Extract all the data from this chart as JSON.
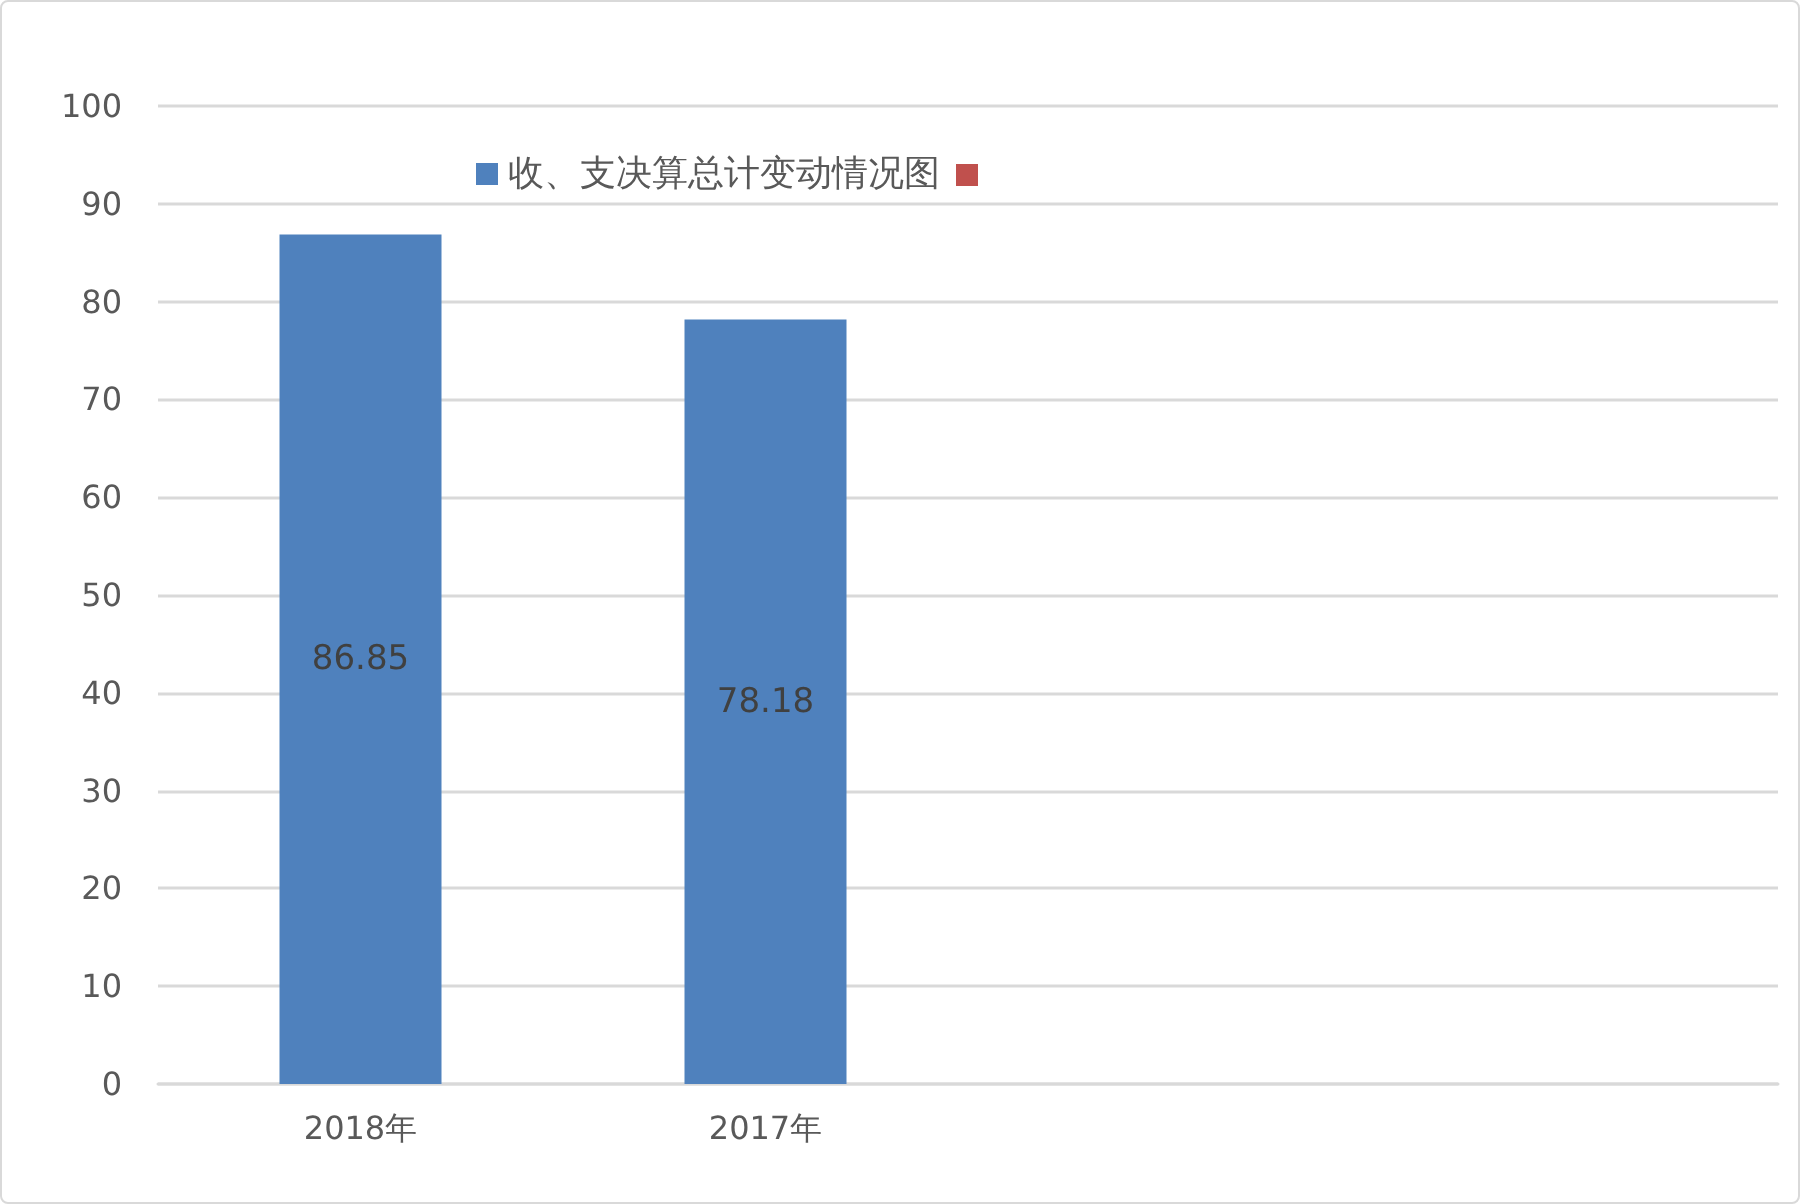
{
  "chart_data": {
    "type": "bar",
    "categories": [
      "2018年",
      "2017年",
      null,
      null
    ],
    "series": [
      {
        "name": "收、支决算总计变动情况图",
        "color": "#4f81bd",
        "values": [
          86.85,
          78.18,
          null,
          null
        ]
      },
      {
        "color": "#c0504d",
        "values": [
          null,
          null,
          null,
          null
        ]
      }
    ],
    "ylim": [
      0,
      100
    ],
    "yticks": [
      0,
      10,
      20,
      30,
      40,
      50,
      60,
      70,
      80,
      90,
      100
    ],
    "grid": "y",
    "legend": "top",
    "data_labels": true
  }
}
